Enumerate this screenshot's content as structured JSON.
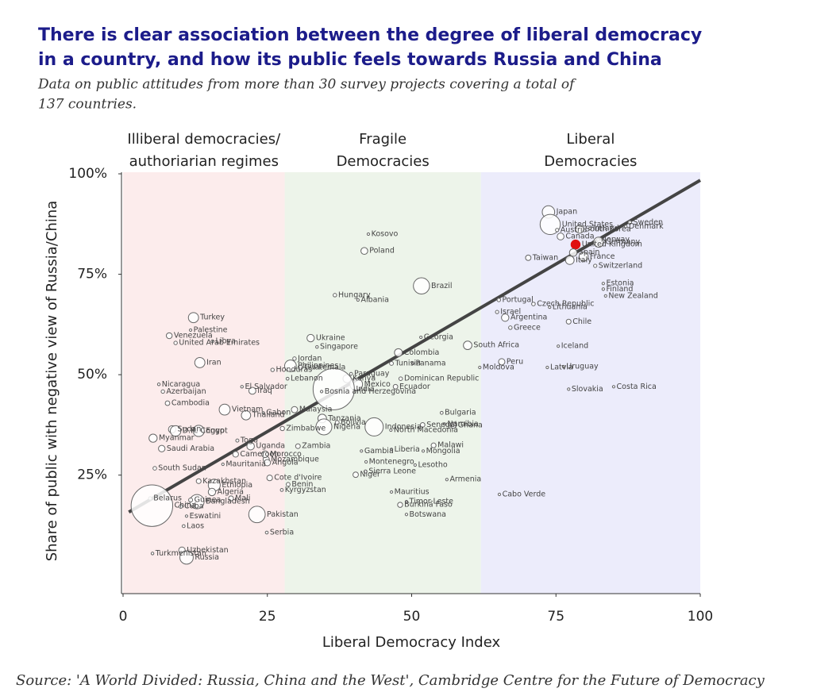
{
  "chart_data": {
    "type": "scatter",
    "title": [
      "There is clear association between the degree of liberal democracy",
      "in a country, and how its public feels towards Russia and China"
    ],
    "subtitle": [
      "Data on public attitudes from more than 30 survey projects covering a total of",
      "137 countries."
    ],
    "x_label": "Liberal Democracy Index",
    "y_label": "Share of public with negative view of Russia/China",
    "source": "Source:  'A World Divided: Russia, China and the West', Cambridge Centre for the Future of Democracy",
    "xlim": [
      0,
      100
    ],
    "ylim": [
      -4.5,
      100.4
    ],
    "xticks": [
      0,
      25,
      50,
      75,
      100
    ],
    "yticks": [
      {
        "value": 25,
        "label": "25%"
      },
      {
        "value": 50,
        "label": "50%"
      },
      {
        "value": 75,
        "label": "75%"
      },
      {
        "value": 100,
        "label": "100%"
      }
    ],
    "regions": [
      {
        "label": [
          "Illiberal democracies/",
          "authoriarian regimes"
        ],
        "from": 0,
        "to": 28,
        "color": "#fcecec"
      },
      {
        "label": [
          "Fragile",
          "Democracies"
        ],
        "from": 28,
        "to": 62,
        "color": "#edf4ea"
      },
      {
        "label": [
          "Liberal",
          "Democracies"
        ],
        "from": 62,
        "to": 100,
        "color": "#ececfb"
      }
    ],
    "trend": {
      "x": [
        1,
        100
      ],
      "y": [
        15.8,
        98.4
      ],
      "color": "#444444"
    },
    "color": "#ffffff",
    "stroke": "#666666",
    "highlight": "United Kingdom",
    "highlight_color": "#e01010",
    "labels": [
      "Japan",
      "United States",
      "South Korea",
      "Sweden",
      "Denmark",
      "Ireland",
      "Austria",
      "Canada",
      "Norway",
      "Germany",
      "United Kingdom",
      "Spain",
      "France",
      "Italy",
      "Taiwan",
      "Switzerland",
      "Estonia",
      "Finland",
      "New Zealand",
      "Czech Republic",
      "Lithuania",
      "Portugal",
      "Israel",
      "Argentina",
      "Chile",
      "Greece",
      "Peru",
      "Iceland",
      "Latvia",
      "Uruguay",
      "Moldova",
      "Slovakia",
      "Costa Rica",
      "Cabo Verde",
      "Kosovo",
      "Poland",
      "Brazil",
      "Hungary",
      "Albania",
      "Ukraine",
      "Georgia",
      "Philippines",
      "Singapore",
      "Guatemala",
      "Colombia",
      "South Africa",
      "Tunisia",
      "Panama",
      "Jordan",
      "Honduras",
      "Lebanon",
      "Kenya",
      "Paraguay",
      "Dominican Republic",
      "Mexico",
      "Ecuador",
      "India",
      "El Salvador",
      "Bosnia and Herzegovina",
      "Iraq",
      "Malaysia",
      "Gabon",
      "Vietnam",
      "Thailand",
      "Tanzania",
      "Nigeria",
      "Bolivia",
      "Indonesia",
      "Bulgaria",
      "Senegal",
      "Namibia",
      "Ghana",
      "North Macedonia",
      "Zimbabwe",
      "Uganda",
      "Zambia",
      "Gambia",
      "Liberia",
      "Mongolia",
      "Malawi",
      "Montenegro",
      "Sierra Leone",
      "Lesotho",
      "Niger",
      "Armenia",
      "Mauritius",
      "Timor-Leste",
      "Burkina Faso",
      "Botswana",
      "Mozambique",
      "Morocco",
      "Angola",
      "Benin",
      "Kyrgyzstan",
      "Cote d'Ivoire",
      "Pakistan",
      "Serbia",
      "Togo",
      "Mauritania",
      "Cameroon",
      "Ethiopia",
      "Algeria",
      "Mali",
      "Bangladesh",
      "Kazakhstan",
      "Egypt",
      "Iran",
      "Turkey",
      "Palestine",
      "Libya",
      "Venezuela",
      "United Arab Emirates",
      "Nicaragua",
      "Azerbaijan",
      "Cambodia",
      "Sudan",
      "D.R. Congo",
      "Myanmar",
      "Saudi Arabia",
      "South Sudan",
      "Belarus",
      "China",
      "Guinea",
      "Cuba",
      "Eswatini",
      "Laos",
      "Uzbekistan",
      "Turkmenistan",
      "Russia"
    ],
    "x": [
      73.7,
      74.0,
      79.1,
      87.8,
      87.1,
      80.9,
      75.2,
      75.8,
      82.3,
      82.4,
      78.4,
      78.0,
      79.8,
      77.4,
      70.2,
      81.8,
      83.2,
      83.2,
      83.6,
      71.1,
      73.9,
      65.1,
      64.8,
      66.2,
      77.2,
      67.1,
      65.6,
      75.4,
      73.5,
      76.3,
      61.8,
      77.2,
      85.0,
      65.2,
      42.5,
      41.8,
      51.7,
      36.7,
      40.7,
      32.5,
      51.6,
      29.0,
      33.6,
      30.7,
      47.7,
      59.7,
      46.5,
      50.2,
      29.7,
      25.9,
      28.5,
      38.8,
      39.5,
      48.1,
      40.4,
      47.2,
      36.5,
      20.6,
      34.4,
      22.4,
      29.7,
      24.3,
      17.6,
      21.3,
      34.5,
      34.8,
      37.1,
      43.5,
      55.2,
      51.9,
      55.7,
      57.2,
      46.4,
      27.6,
      22.1,
      30.3,
      41.3,
      46.5,
      52.0,
      53.8,
      42.1,
      42.0,
      50.6,
      40.3,
      56.1,
      46.5,
      49.1,
      48.0,
      49.1,
      24.8,
      24.6,
      25.0,
      28.6,
      27.5,
      25.4,
      23.2,
      24.9,
      19.8,
      17.3,
      19.5,
      15.8,
      15.4,
      18.7,
      12.8,
      13.1,
      13.1,
      13.3,
      12.2,
      11.7,
      15.5,
      8.0,
      9.1,
      6.2,
      6.9,
      7.7,
      8.5,
      9.1,
      5.2,
      6.7,
      5.5,
      4.7,
      5.0,
      11.7,
      10.0,
      11.0,
      10.5,
      10.2,
      5.1,
      11.0
    ],
    "values": [
      90.5,
      87.4,
      86.2,
      87.9,
      86.9,
      86.4,
      86.0,
      84.4,
      83.6,
      83.0,
      82.4,
      80.4,
      79.4,
      78.5,
      79.1,
      77.1,
      72.7,
      71.3,
      69.6,
      67.6,
      66.8,
      68.6,
      65.6,
      64.2,
      63.2,
      61.7,
      53.2,
      57.1,
      51.8,
      52.0,
      51.8,
      46.4,
      47.0,
      20.2,
      85.0,
      80.8,
      72.1,
      69.8,
      68.6,
      59.1,
      59.3,
      52.2,
      56.9,
      51.8,
      55.5,
      57.3,
      52.8,
      52.8,
      54.0,
      51.2,
      49.0,
      49.0,
      50.2,
      49.0,
      47.6,
      47.0,
      46.4,
      47.0,
      45.8,
      46.0,
      41.3,
      40.5,
      41.3,
      39.9,
      39.1,
      37.0,
      38.1,
      37.0,
      40.5,
      37.5,
      37.7,
      37.4,
      36.2,
      36.6,
      32.2,
      32.2,
      31.0,
      31.4,
      31.0,
      32.4,
      28.3,
      25.9,
      27.5,
      25.1,
      23.9,
      20.8,
      18.4,
      17.6,
      15.2,
      28.9,
      30.2,
      28.1,
      22.7,
      21.3,
      24.3,
      15.2,
      10.7,
      33.6,
      27.7,
      30.2,
      22.5,
      20.8,
      19.2,
      18.4,
      23.5,
      36.0,
      53.0,
      64.2,
      61.1,
      58.3,
      59.7,
      57.9,
      47.6,
      45.8,
      42.9,
      36.4,
      36.0,
      34.2,
      31.6,
      26.7,
      19.2,
      17.4,
      18.8,
      17.2,
      14.8,
      12.3,
      6.3,
      5.5,
      4.5
    ],
    "sizes": [
      125,
      330,
      52,
      10,
      6,
      5,
      9,
      38,
      5,
      83,
      67,
      47,
      67,
      60,
      24,
      9,
      1.3,
      5.5,
      5,
      11,
      3,
      10,
      9,
      45,
      19,
      10,
      33,
      0.4,
      2,
      3,
      3,
      5,
      5,
      0.5,
      2,
      38,
      212,
      10,
      3,
      44,
      4,
      110,
      6,
      17,
      50,
      59,
      12,
      4,
      10,
      10,
      7,
      53,
      7,
      11,
      128,
      17,
      1380,
      6,
      3,
      40,
      32,
      2,
      97,
      70,
      60,
      206,
      12,
      270,
      7,
      17,
      2.5,
      31,
      2,
      15,
      46,
      18,
      2,
      5,
      3,
      19,
      0.6,
      8,
      2,
      24,
      3,
      1.3,
      1.3,
      21,
      2.4,
      31,
      37,
      33,
      12,
      7,
      26,
      220,
      7,
      8,
      5,
      27,
      115,
      44,
      20,
      165,
      19,
      102,
      84,
      84,
      5,
      7,
      28,
      10,
      6,
      10,
      17,
      44,
      90,
      54,
      35,
      11,
      9,
      1400,
      13,
      11,
      1.2,
      7,
      34,
      6,
      145
    ]
  }
}
